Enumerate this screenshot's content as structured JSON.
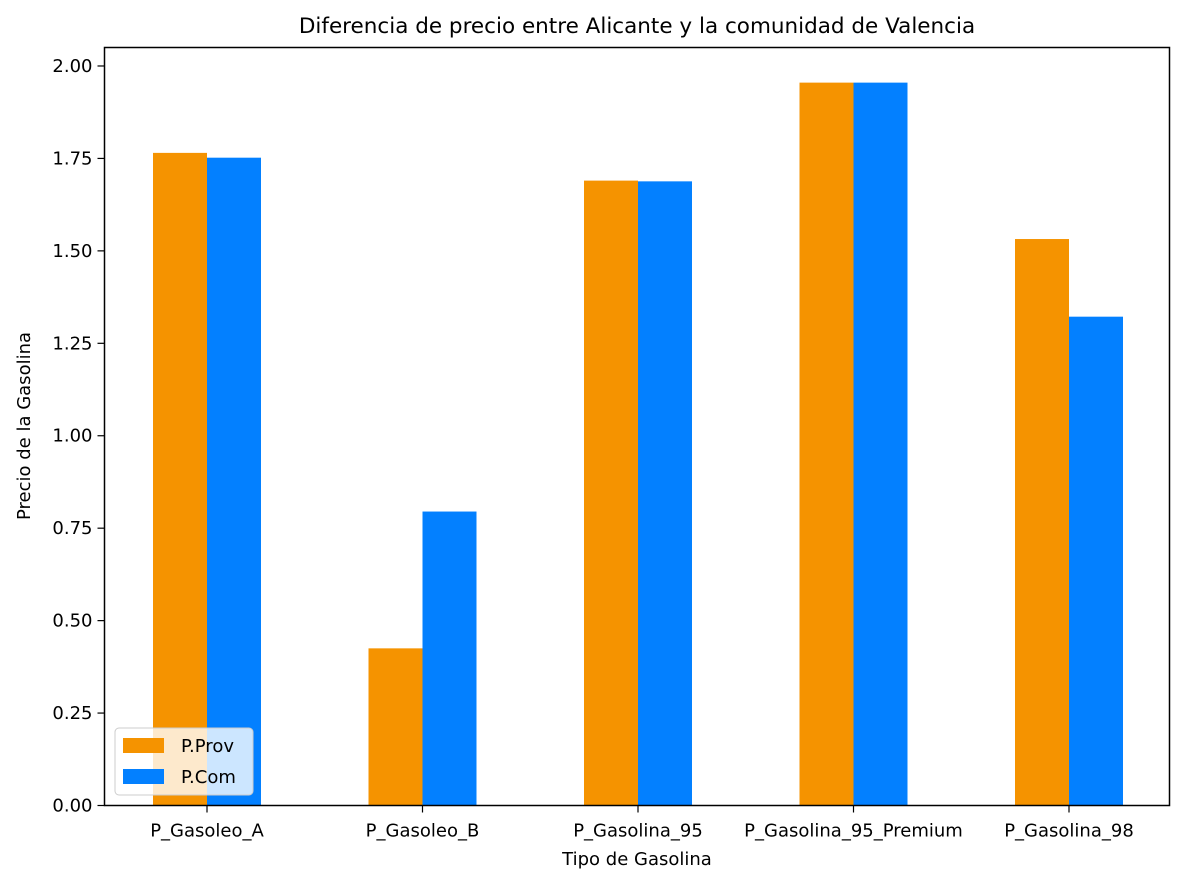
{
  "chart_data": {
    "type": "bar",
    "title": "Diferencia de precio entre Alicante y la comunidad de Valencia",
    "xlabel": "Tipo de Gasolina",
    "ylabel": "Precio de la Gasolina",
    "categories": [
      "P_Gasoleo_A",
      "P_Gasoleo_B",
      "P_Gasolina_95",
      "P_Gasolina_95_Premium",
      "P_Gasolina_98"
    ],
    "series": [
      {
        "name": "P.Prov",
        "color": "#f59300",
        "values": [
          1.765,
          0.425,
          1.69,
          1.955,
          1.532
        ]
      },
      {
        "name": "P.Com",
        "color": "#0380ff",
        "values": [
          1.752,
          0.795,
          1.688,
          1.955,
          1.322
        ]
      }
    ],
    "ylim": [
      0,
      2.05
    ],
    "yticks": [
      "0.00",
      "0.25",
      "0.50",
      "0.75",
      "1.00",
      "1.25",
      "1.50",
      "1.75",
      "2.00"
    ],
    "grid": false,
    "legend_position": "lower-left"
  }
}
